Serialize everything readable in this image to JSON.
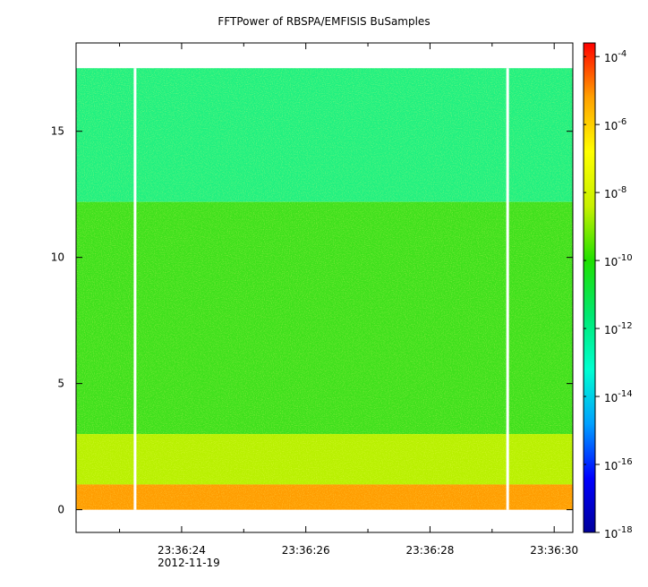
{
  "chart_data": {
    "type": "heatmap",
    "title": "FFTPower of RBSPA/EMFISIS  BuSamples",
    "x": {
      "ticks": [
        {
          "t": 24,
          "label": "23:36:24",
          "sublabel": "2012-11-19"
        },
        {
          "t": 26,
          "label": "23:36:26",
          "sublabel": ""
        },
        {
          "t": 28,
          "label": "23:36:28",
          "sublabel": ""
        },
        {
          "t": 30,
          "label": "23:36:30",
          "sublabel": ""
        }
      ],
      "minor_ticks": [
        23,
        25,
        27,
        29
      ],
      "range": [
        22.3,
        30.3
      ]
    },
    "y": {
      "ticks": [
        0,
        5,
        10,
        15
      ],
      "tick_labels": [
        "0",
        "5",
        "10",
        "15"
      ],
      "range": [
        -0.9,
        18.5
      ],
      "data_range": [
        0,
        17.5
      ]
    },
    "data_gaps": [
      23.25,
      29.25
    ],
    "colorbar": {
      "scale": "log",
      "range_exponents": [
        -18,
        -3.6
      ],
      "ticks": [
        {
          "exp": -4,
          "base": "10",
          "sup": "-4"
        },
        {
          "exp": -6,
          "base": "10",
          "sup": "-6"
        },
        {
          "exp": -8,
          "base": "10",
          "sup": "-8"
        },
        {
          "exp": -10,
          "base": "10",
          "sup": "-10"
        },
        {
          "exp": -12,
          "base": "10",
          "sup": "-12"
        },
        {
          "exp": -14,
          "base": "10",
          "sup": "-14"
        },
        {
          "exp": -16,
          "base": "10",
          "sup": "-16"
        },
        {
          "exp": -18,
          "base": "10",
          "sup": "-18"
        }
      ],
      "colors": [
        "#00009a",
        "#0000ff",
        "#00a0ff",
        "#00ffd0",
        "#00e870",
        "#20e000",
        "#c8f000",
        "#ffff00",
        "#ffa000",
        "#ff0000"
      ]
    },
    "regions": [
      {
        "y_from": 12.2,
        "y_to": 17.5,
        "level_exp": -12.4,
        "color": "#20f080"
      },
      {
        "y_from": 3.0,
        "y_to": 12.2,
        "level_exp": -10.2,
        "color": "#3ee01c"
      },
      {
        "y_from": 1.0,
        "y_to": 3.0,
        "level_exp": -9.0,
        "color": "#b8f000"
      },
      {
        "y_from": 0,
        "y_to": 1.0,
        "level_exp": -7.0,
        "color": "#ff9c00"
      }
    ]
  }
}
